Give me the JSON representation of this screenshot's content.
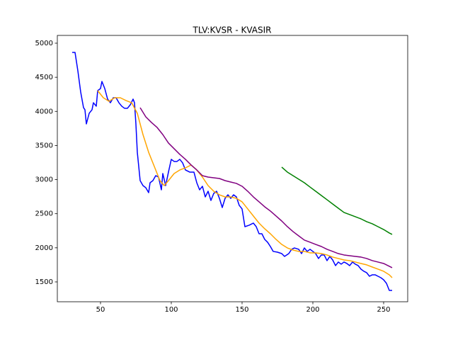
{
  "chart_data": {
    "type": "line",
    "title": "TLV:KVSR - KVASIR",
    "xlim": [
      19.5,
      267
    ],
    "ylim": [
      1209,
      5114
    ],
    "xticks": [
      50,
      100,
      150,
      200,
      250
    ],
    "yticks": [
      1500,
      2000,
      2500,
      3000,
      3500,
      4000,
      4500,
      5000
    ],
    "series": [
      {
        "color": "#0000ff",
        "x": [
          30,
          32,
          34,
          36,
          38,
          39,
          40,
          42,
          44,
          45,
          47,
          48,
          50,
          51,
          53,
          55,
          57,
          59,
          61,
          63,
          65,
          67,
          69,
          71,
          73,
          74,
          75,
          76,
          77,
          78,
          80,
          82,
          84,
          85,
          87,
          89,
          91,
          93,
          94,
          96,
          98,
          100,
          102,
          104,
          106,
          108,
          110,
          113,
          116,
          118,
          120,
          122,
          124,
          126,
          128,
          130,
          132,
          134,
          136,
          138,
          140,
          142,
          144,
          146,
          148,
          150,
          152,
          155,
          158,
          160,
          162,
          164,
          166,
          168,
          170,
          172,
          175,
          178,
          180,
          183,
          185,
          187,
          190,
          192,
          194,
          196,
          198,
          200,
          202,
          204,
          206,
          208,
          210,
          212,
          214,
          216,
          218,
          220,
          222,
          224,
          226,
          228,
          230,
          232,
          234,
          236,
          238,
          240,
          242,
          244,
          246,
          248,
          250,
          252,
          254,
          256
        ],
        "values": [
          4865,
          4865,
          4595,
          4283,
          4055,
          4024,
          3816,
          3972,
          4024,
          4127,
          4076,
          4304,
          4335,
          4439,
          4335,
          4180,
          4127,
          4200,
          4200,
          4127,
          4076,
          4045,
          4045,
          4096,
          4180,
          4127,
          3816,
          3400,
          3193,
          2985,
          2912,
          2881,
          2809,
          2954,
          2985,
          3058,
          3037,
          2850,
          3089,
          2912,
          3110,
          3297,
          3266,
          3266,
          3297,
          3245,
          3141,
          3110,
          3110,
          2954,
          2850,
          2902,
          2746,
          2829,
          2694,
          2798,
          2829,
          2725,
          2590,
          2725,
          2777,
          2725,
          2777,
          2746,
          2622,
          2570,
          2310,
          2331,
          2362,
          2310,
          2206,
          2206,
          2123,
          2082,
          2019,
          1947,
          1936,
          1915,
          1874,
          1915,
          1978,
          1998,
          1978,
          1915,
          1998,
          1947,
          1978,
          1947,
          1915,
          1843,
          1895,
          1895,
          1812,
          1874,
          1822,
          1739,
          1791,
          1760,
          1791,
          1770,
          1739,
          1791,
          1760,
          1739,
          1687,
          1656,
          1635,
          1583,
          1604,
          1604,
          1583,
          1562,
          1531,
          1479,
          1375,
          1375
        ]
      },
      {
        "color": "#ffa500",
        "x": [
          48,
          52,
          56,
          60,
          64,
          68,
          72,
          76,
          80,
          84,
          88,
          92,
          95,
          98,
          102,
          106,
          110,
          114,
          118,
          122,
          126,
          130,
          134,
          138,
          142,
          146,
          150,
          154,
          158,
          162,
          166,
          170,
          174,
          178,
          182,
          186,
          190,
          194,
          198,
          202,
          206,
          210,
          214,
          218,
          222,
          226,
          230,
          234,
          238,
          242,
          246,
          250,
          254,
          256
        ],
        "values": [
          4304,
          4200,
          4148,
          4200,
          4200,
          4159,
          4127,
          3972,
          3660,
          3400,
          3193,
          2985,
          2912,
          2985,
          3089,
          3141,
          3172,
          3214,
          3141,
          3037,
          2912,
          2829,
          2777,
          2746,
          2746,
          2725,
          2674,
          2570,
          2466,
          2362,
          2279,
          2206,
          2123,
          2050,
          1998,
          1967,
          1947,
          1947,
          1926,
          1926,
          1915,
          1895,
          1864,
          1843,
          1822,
          1812,
          1791,
          1770,
          1750,
          1718,
          1687,
          1656,
          1604,
          1562
        ]
      },
      {
        "color": "#800080",
        "x": [
          78,
          82,
          86,
          90,
          94,
          98,
          102,
          106,
          110,
          114,
          118,
          122,
          126,
          130,
          134,
          138,
          142,
          146,
          150,
          154,
          158,
          162,
          166,
          170,
          174,
          178,
          182,
          186,
          190,
          194,
          198,
          202,
          206,
          210,
          214,
          218,
          222,
          226,
          230,
          234,
          238,
          242,
          246,
          250,
          254,
          256
        ],
        "values": [
          4055,
          3920,
          3837,
          3764,
          3660,
          3536,
          3453,
          3370,
          3297,
          3214,
          3141,
          3058,
          3037,
          3027,
          3016,
          2985,
          2964,
          2944,
          2902,
          2829,
          2746,
          2674,
          2601,
          2539,
          2466,
          2393,
          2310,
          2238,
          2175,
          2113,
          2082,
          2050,
          2019,
          1978,
          1947,
          1915,
          1895,
          1884,
          1874,
          1864,
          1843,
          1812,
          1791,
          1770,
          1729,
          1708
        ]
      },
      {
        "color": "#008000",
        "x": [
          178,
          182,
          186,
          190,
          194,
          198,
          202,
          206,
          210,
          214,
          218,
          222,
          226,
          230,
          234,
          238,
          242,
          246,
          250,
          254,
          256
        ],
        "values": [
          3183,
          3110,
          3058,
          3006,
          2954,
          2891,
          2829,
          2767,
          2705,
          2642,
          2580,
          2518,
          2487,
          2456,
          2424,
          2383,
          2352,
          2310,
          2268,
          2217,
          2196
        ]
      }
    ]
  }
}
